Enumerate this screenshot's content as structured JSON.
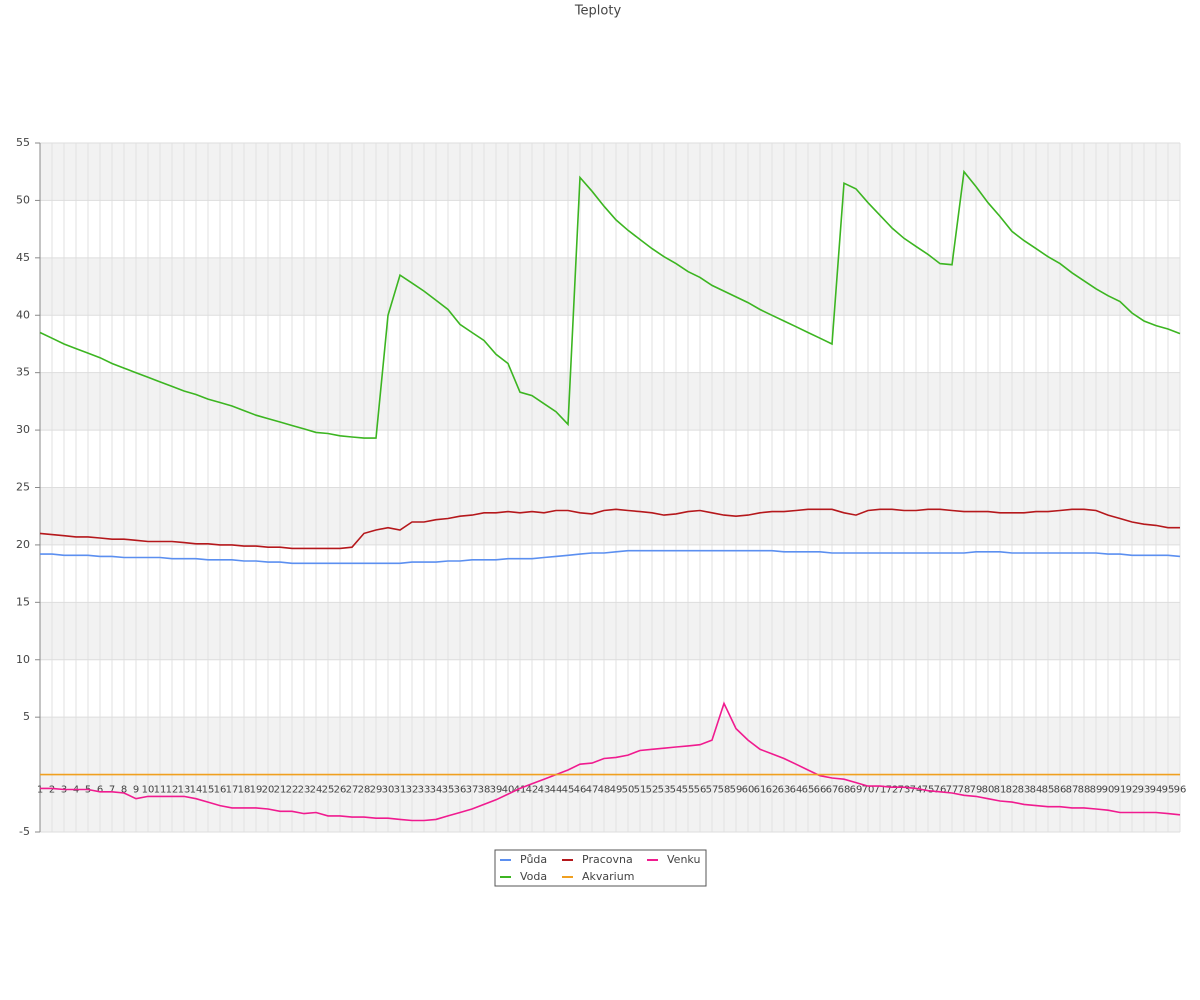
{
  "chart_data": {
    "type": "line",
    "title": "Teploty",
    "categories": [
      1,
      2,
      3,
      4,
      5,
      6,
      7,
      8,
      9,
      10,
      11,
      12,
      13,
      14,
      15,
      16,
      17,
      18,
      19,
      20,
      21,
      22,
      23,
      24,
      25,
      26,
      27,
      28,
      29,
      30,
      31,
      32,
      33,
      34,
      35,
      36,
      37,
      38,
      39,
      40,
      41,
      42,
      43,
      44,
      45,
      46,
      47,
      48,
      49,
      50,
      51,
      52,
      53,
      54,
      55,
      56,
      57,
      58,
      59,
      60,
      61,
      62,
      63,
      64,
      65,
      66,
      67,
      68,
      69,
      70,
      71,
      72,
      73,
      74,
      75,
      76,
      77,
      78,
      79,
      80,
      81,
      82,
      83,
      84,
      85,
      86,
      87,
      88,
      89,
      90,
      91,
      92,
      93,
      94,
      95,
      96
    ],
    "ylim": [
      -5,
      55
    ],
    "yticks": [
      -5,
      5,
      10,
      15,
      20,
      25,
      30,
      35,
      40,
      45,
      50,
      55
    ],
    "grid": true,
    "legend": "bottom",
    "series": [
      {
        "name": "Půda",
        "color": "#5b8ff0",
        "values": [
          19.2,
          19.2,
          19.1,
          19.1,
          19.1,
          19.0,
          19.0,
          18.9,
          18.9,
          18.9,
          18.9,
          18.8,
          18.8,
          18.8,
          18.7,
          18.7,
          18.7,
          18.6,
          18.6,
          18.5,
          18.5,
          18.4,
          18.4,
          18.4,
          18.4,
          18.4,
          18.4,
          18.4,
          18.4,
          18.4,
          18.4,
          18.5,
          18.5,
          18.5,
          18.6,
          18.6,
          18.7,
          18.7,
          18.7,
          18.8,
          18.8,
          18.8,
          18.9,
          19.0,
          19.1,
          19.2,
          19.3,
          19.3,
          19.4,
          19.5,
          19.5,
          19.5,
          19.5,
          19.5,
          19.5,
          19.5,
          19.5,
          19.5,
          19.5,
          19.5,
          19.5,
          19.5,
          19.4,
          19.4,
          19.4,
          19.4,
          19.3,
          19.3,
          19.3,
          19.3,
          19.3,
          19.3,
          19.3,
          19.3,
          19.3,
          19.3,
          19.3,
          19.3,
          19.4,
          19.4,
          19.4,
          19.3,
          19.3,
          19.3,
          19.3,
          19.3,
          19.3,
          19.3,
          19.3,
          19.2,
          19.2,
          19.1,
          19.1,
          19.1,
          19.1,
          19.0
        ]
      },
      {
        "name": "Pracovna",
        "color": "#b5181c",
        "values": [
          21.0,
          20.9,
          20.8,
          20.7,
          20.7,
          20.6,
          20.5,
          20.5,
          20.4,
          20.3,
          20.3,
          20.3,
          20.2,
          20.1,
          20.1,
          20.0,
          20.0,
          19.9,
          19.9,
          19.8,
          19.8,
          19.7,
          19.7,
          19.7,
          19.7,
          19.7,
          19.8,
          21.0,
          21.3,
          21.5,
          21.3,
          22.0,
          22.0,
          22.2,
          22.3,
          22.5,
          22.6,
          22.8,
          22.8,
          22.9,
          22.8,
          22.9,
          22.8,
          23.0,
          23.0,
          22.8,
          22.7,
          23.0,
          23.1,
          23.0,
          22.9,
          22.8,
          22.6,
          22.7,
          22.9,
          23.0,
          22.8,
          22.6,
          22.5,
          22.6,
          22.8,
          22.9,
          22.9,
          23.0,
          23.1,
          23.1,
          23.1,
          22.8,
          22.6,
          23.0,
          23.1,
          23.1,
          23.0,
          23.0,
          23.1,
          23.1,
          23.0,
          22.9,
          22.9,
          22.9,
          22.8,
          22.8,
          22.8,
          22.9,
          22.9,
          23.0,
          23.1,
          23.1,
          23.0,
          22.6,
          22.3,
          22.0,
          21.8,
          21.7,
          21.5,
          21.5
        ]
      },
      {
        "name": "Venku",
        "color": "#f01b8f",
        "values": [
          -1.2,
          -1.2,
          -1.3,
          -1.3,
          -1.3,
          -1.5,
          -1.5,
          -1.6,
          -2.1,
          -1.9,
          -1.9,
          -1.9,
          -1.9,
          -2.1,
          -2.4,
          -2.7,
          -2.9,
          -2.9,
          -2.9,
          -3.0,
          -3.2,
          -3.2,
          -3.4,
          -3.3,
          -3.6,
          -3.6,
          -3.7,
          -3.7,
          -3.8,
          -3.8,
          -3.9,
          -4.0,
          -4.0,
          -3.9,
          -3.6,
          -3.3,
          -3.0,
          -2.6,
          -2.2,
          -1.7,
          -1.2,
          -0.8,
          -0.4,
          0.0,
          0.4,
          0.9,
          1.0,
          1.4,
          1.5,
          1.7,
          2.1,
          2.2,
          2.3,
          2.4,
          2.5,
          2.6,
          3.0,
          6.2,
          4.0,
          3.0,
          2.2,
          1.8,
          1.4,
          0.9,
          0.4,
          -0.1,
          -0.3,
          -0.4,
          -0.7,
          -1.0,
          -1.0,
          -1.1,
          -1.1,
          -1.2,
          -1.4,
          -1.5,
          -1.6,
          -1.8,
          -1.9,
          -2.1,
          -2.3,
          -2.4,
          -2.6,
          -2.7,
          -2.8,
          -2.8,
          -2.9,
          -2.9,
          -3.0,
          -3.1,
          -3.3,
          -3.3,
          -3.3,
          -3.3,
          -3.4,
          -3.5
        ]
      },
      {
        "name": "Voda",
        "color": "#3cb521",
        "values": [
          38.5,
          38.0,
          37.5,
          37.1,
          36.7,
          36.3,
          35.8,
          35.4,
          35.0,
          34.6,
          34.2,
          33.8,
          33.4,
          33.1,
          32.7,
          32.4,
          32.1,
          31.7,
          31.3,
          31.0,
          30.7,
          30.4,
          30.1,
          29.8,
          29.7,
          29.5,
          29.4,
          29.3,
          29.3,
          40.0,
          43.5,
          42.8,
          42.1,
          41.3,
          40.5,
          39.2,
          38.5,
          37.8,
          36.6,
          35.8,
          33.3,
          33.0,
          32.3,
          31.6,
          30.5,
          52.0,
          50.8,
          49.5,
          48.3,
          47.4,
          46.6,
          45.8,
          45.1,
          44.5,
          43.8,
          43.3,
          42.6,
          42.1,
          41.6,
          41.1,
          40.5,
          40.0,
          39.5,
          39.0,
          38.5,
          38.0,
          37.5,
          51.5,
          51.0,
          49.8,
          48.7,
          47.6,
          46.7,
          46.0,
          45.3,
          44.5,
          44.4,
          52.5,
          51.2,
          49.8,
          48.6,
          47.3,
          46.5,
          45.8,
          45.1,
          44.5,
          43.7,
          43.0,
          42.3,
          41.7,
          41.2,
          40.2,
          39.5,
          39.1,
          38.8,
          38.4
        ]
      },
      {
        "name": "Akvarium",
        "color": "#f0a020",
        "values": [
          0,
          0,
          0,
          0,
          0,
          0,
          0,
          0,
          0,
          0,
          0,
          0,
          0,
          0,
          0,
          0,
          0,
          0,
          0,
          0,
          0,
          0,
          0,
          0,
          0,
          0,
          0,
          0,
          0,
          0,
          0,
          0,
          0,
          0,
          0,
          0,
          0,
          0,
          0,
          0,
          0,
          0,
          0,
          0,
          0,
          0,
          0,
          0,
          0,
          0,
          0,
          0,
          0,
          0,
          0,
          0,
          0,
          0,
          0,
          0,
          0,
          0,
          0,
          0,
          0,
          0,
          0,
          0,
          0,
          0,
          0,
          0,
          0,
          0,
          0,
          0,
          0,
          0,
          0,
          0,
          0,
          0,
          0,
          0,
          0,
          0,
          0,
          0,
          0,
          0,
          0,
          0,
          0,
          0,
          0,
          0
        ]
      }
    ]
  }
}
